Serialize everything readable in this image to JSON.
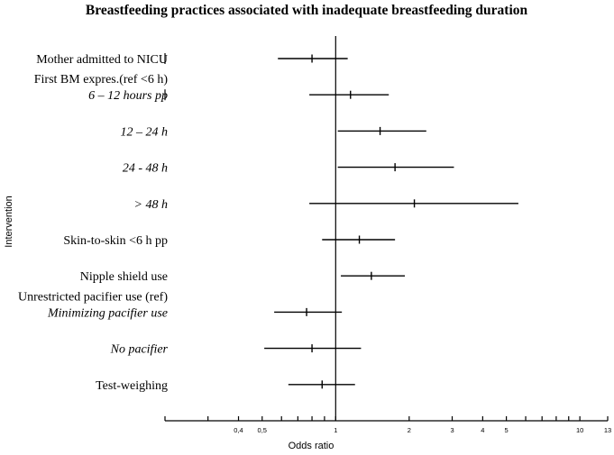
{
  "chart_data": {
    "type": "forest",
    "title": "Breastfeeding practices associated with inadequate breastfeeding duration",
    "xlabel": "Odds ratio",
    "ylabel": "Intervention",
    "x_scale": "log",
    "xlim": [
      0.2,
      13
    ],
    "reference_line": 1,
    "tick_labels": [
      "0,4",
      "0,5",
      "1",
      "2",
      "3",
      "4",
      "5",
      "10",
      "13"
    ],
    "minor_tick_values": [
      0.2,
      0.3,
      0.4,
      0.5,
      0.6,
      0.7,
      0.8,
      0.9,
      1,
      2,
      3,
      4,
      5,
      6,
      7,
      8,
      9,
      10,
      13
    ],
    "labels": [
      {
        "text": "Mother admitted to NICU",
        "italic": false,
        "row": 0
      },
      {
        "text": "First BM expres.(ref <6 h)",
        "italic": false,
        "row": 0.55
      },
      {
        "text": "6 – 12 hours pp",
        "italic": true,
        "row": 1
      },
      {
        "text": "12 – 24 h",
        "italic": true,
        "row": 2
      },
      {
        "text": "24 - 48 h",
        "italic": true,
        "row": 3
      },
      {
        "text": "> 48 h",
        "italic": true,
        "row": 4
      },
      {
        "text": "Skin-to-skin <6 h pp",
        "italic": false,
        "row": 5
      },
      {
        "text": "Nipple shield use",
        "italic": false,
        "row": 6
      },
      {
        "text": "Unrestricted pacifier use (ref)",
        "italic": false,
        "row": 6.55
      },
      {
        "text": "Minimizing pacifier use",
        "italic": true,
        "row": 7
      },
      {
        "text": "No pacifier",
        "italic": true,
        "row": 8
      },
      {
        "text": "Test-weighing",
        "italic": false,
        "row": 9
      }
    ],
    "series": [
      {
        "row": 0,
        "or": 0.8,
        "lower": 0.58,
        "upper": 1.12
      },
      {
        "row": 1,
        "or": 1.15,
        "lower": 0.78,
        "upper": 1.65
      },
      {
        "row": 2,
        "or": 1.52,
        "lower": 1.02,
        "upper": 2.35
      },
      {
        "row": 3,
        "or": 1.75,
        "lower": 1.02,
        "upper": 3.05
      },
      {
        "row": 4,
        "or": 2.1,
        "lower": 0.78,
        "upper": 5.6
      },
      {
        "row": 5,
        "or": 1.25,
        "lower": 0.88,
        "upper": 1.75
      },
      {
        "row": 6,
        "or": 1.4,
        "lower": 1.05,
        "upper": 1.92
      },
      {
        "row": 7,
        "or": 0.76,
        "lower": 0.56,
        "upper": 1.06
      },
      {
        "row": 8,
        "or": 0.8,
        "lower": 0.51,
        "upper": 1.27
      },
      {
        "row": 9,
        "or": 0.88,
        "lower": 0.64,
        "upper": 1.2
      }
    ]
  }
}
